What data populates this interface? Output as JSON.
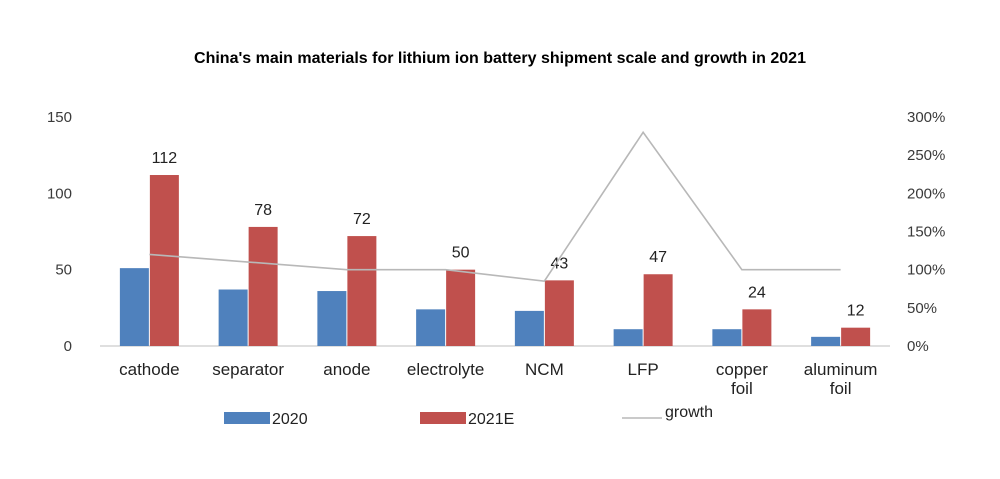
{
  "chart_data": {
    "type": "bar",
    "title": "China's main materials for lithium ion battery shipment scale and growth in 2021",
    "categories": [
      [
        "cathode"
      ],
      [
        "separator"
      ],
      [
        "anode"
      ],
      [
        "electrolyte"
      ],
      [
        "NCM"
      ],
      [
        "LFP"
      ],
      [
        "copper",
        "foil"
      ],
      [
        "aluminum",
        "foil"
      ]
    ],
    "series": [
      {
        "name": "2020",
        "type": "bar",
        "axis": "left",
        "color": "#4f81bd",
        "values": [
          51,
          37,
          36,
          24,
          23,
          11,
          11,
          6
        ]
      },
      {
        "name": "2021E",
        "type": "bar",
        "axis": "left",
        "color": "#c0504d",
        "values": [
          112,
          78,
          72,
          50,
          43,
          47,
          24,
          12
        ],
        "data_labels": [
          "112",
          "78",
          "72",
          "50",
          "43",
          "47",
          "24",
          "12"
        ]
      },
      {
        "name": "growth",
        "type": "line",
        "axis": "right",
        "color": "#b8b8b8",
        "values": [
          120,
          110,
          100,
          100,
          85,
          280,
          100,
          100
        ]
      }
    ],
    "y_left": {
      "ylim": [
        0,
        150
      ],
      "ticks": [
        "0",
        "50",
        "100",
        "150"
      ]
    },
    "y_right": {
      "ylim": [
        0,
        300
      ],
      "ticks": [
        "0%",
        "50%",
        "100%",
        "150%",
        "200%",
        "250%",
        "300%"
      ]
    },
    "grid": false,
    "legend_position": "bottom"
  }
}
